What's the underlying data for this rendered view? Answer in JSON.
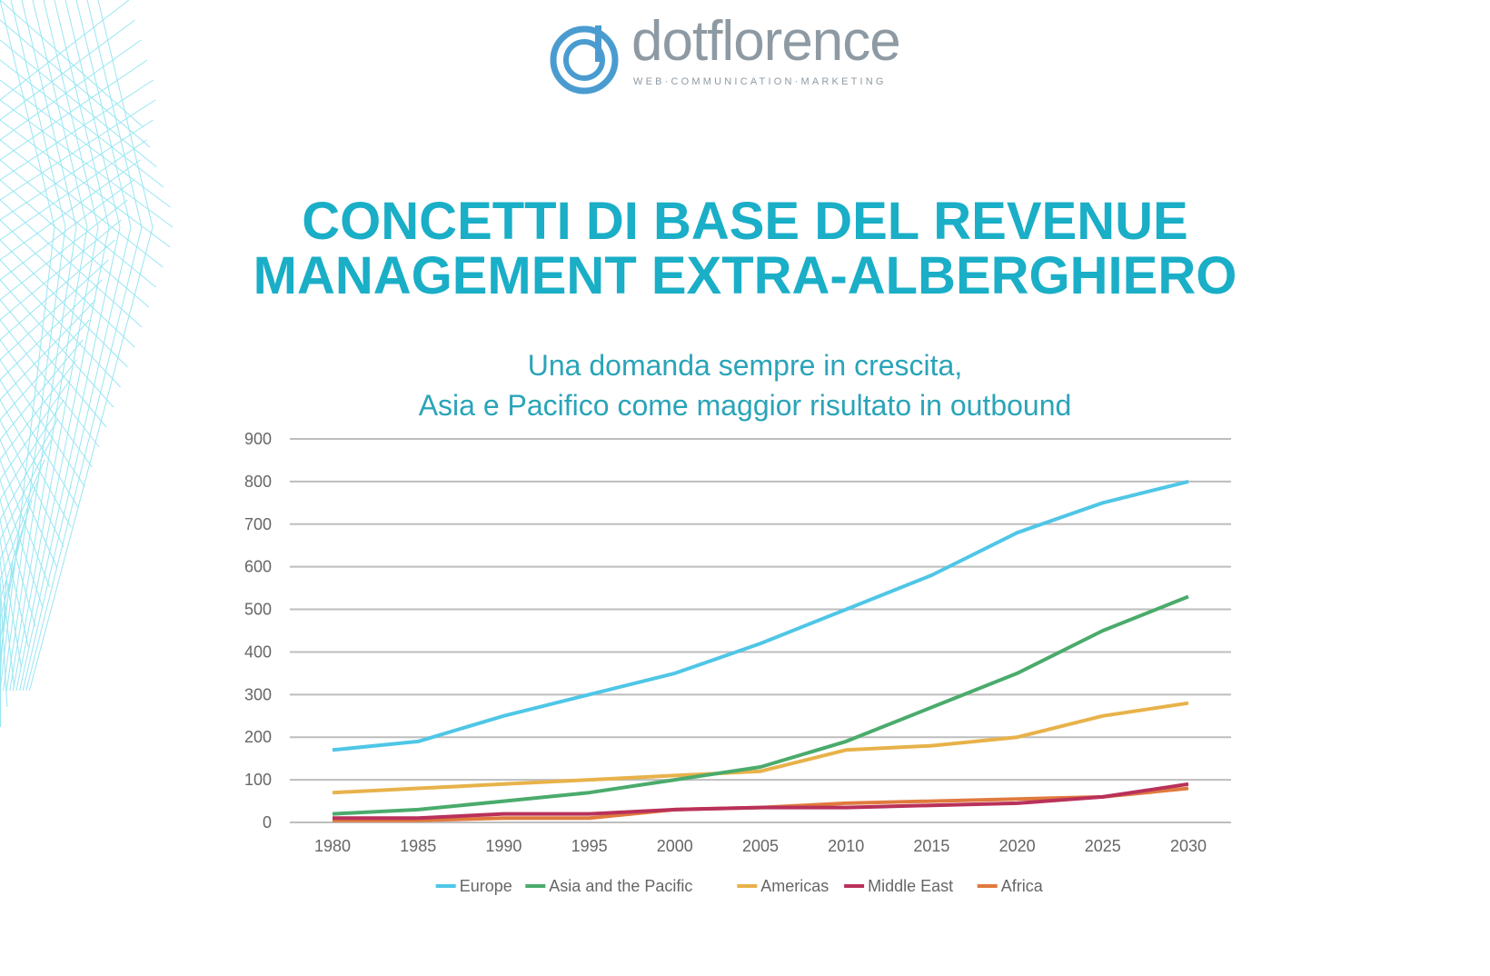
{
  "logo": {
    "name": "dotflorence",
    "tagline": "WEB·COMMUNICATION·MARKETING"
  },
  "title": {
    "line1": "CONCETTI DI BASE DEL REVENUE",
    "line2": "MANAGEMENT EXTRA-ALBERGHIERO"
  },
  "colors": {
    "title": "#1aaec7",
    "subtitle": "#2aa4b9",
    "deco_lines": "#7fe0f0"
  },
  "chart_data": {
    "type": "line",
    "title_line1": "Una domanda sempre in crescita,",
    "title_line2": "Asia e Pacifico come maggior risultato in outbound",
    "x": [
      "1980",
      "1985",
      "1990",
      "1995",
      "2000",
      "2005",
      "2010",
      "2015",
      "2020",
      "2025",
      "2030"
    ],
    "ylim": [
      0,
      900
    ],
    "yticks": [
      "0",
      "100",
      "200",
      "300",
      "400",
      "500",
      "600",
      "700",
      "800",
      "900"
    ],
    "grid": true,
    "legend_position": "bottom",
    "series": [
      {
        "name": "Europe",
        "color": "#4fc6e6",
        "values": [
          170,
          190,
          250,
          300,
          350,
          420,
          500,
          580,
          680,
          750,
          800
        ]
      },
      {
        "name": "Asia and the Pacific",
        "color": "#4aab6c",
        "values": [
          20,
          30,
          50,
          70,
          100,
          130,
          190,
          270,
          350,
          450,
          530
        ]
      },
      {
        "name": "Americas",
        "color": "#e8b24a",
        "values": [
          70,
          80,
          90,
          100,
          110,
          120,
          170,
          180,
          200,
          250,
          280
        ]
      },
      {
        "name": "Middle East",
        "color": "#b9315a",
        "values": [
          10,
          10,
          20,
          20,
          30,
          35,
          35,
          40,
          45,
          60,
          90
        ]
      },
      {
        "name": "Africa",
        "color": "#e07a3e",
        "values": [
          5,
          5,
          10,
          10,
          30,
          35,
          45,
          50,
          55,
          60,
          80
        ]
      }
    ]
  }
}
